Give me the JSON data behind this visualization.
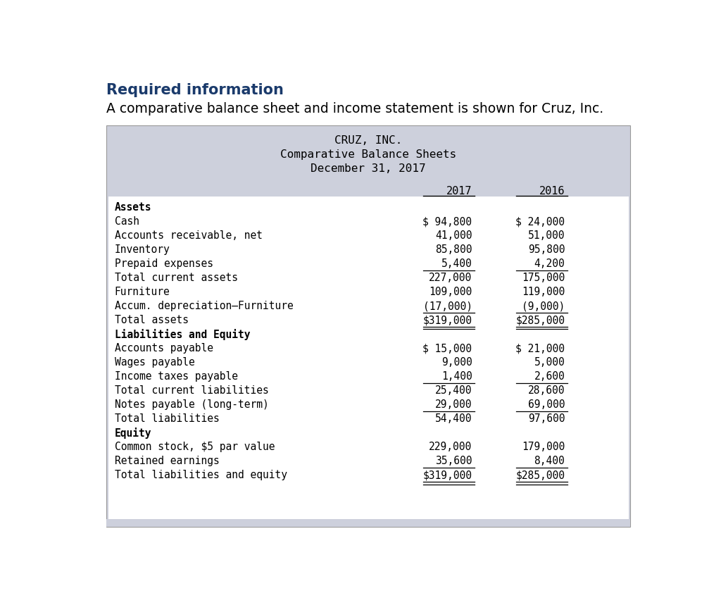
{
  "page_bg": "#ffffff",
  "header_title": "Required information",
  "header_title_color": "#1a3a6b",
  "header_subtitle": "A comparative balance sheet and income statement is shown for Cruz, Inc.",
  "table_bg": "#cdd0dc",
  "table_inner_bg": "#ffffff",
  "table_title_lines": [
    "CRUZ, INC.",
    "Comparative Balance Sheets",
    "December 31, 2017"
  ],
  "col_headers": [
    "2017",
    "2016"
  ],
  "rows": [
    {
      "label": "Assets",
      "val2017": "",
      "val2016": "",
      "bold": true,
      "underline_below": false,
      "dollar_sign": false
    },
    {
      "label": "Cash",
      "val2017": "$ 94,800",
      "val2016": "$ 24,000",
      "bold": false,
      "underline_below": false,
      "dollar_sign": false
    },
    {
      "label": "Accounts receivable, net",
      "val2017": "41,000",
      "val2016": "51,000",
      "bold": false,
      "underline_below": false,
      "dollar_sign": false
    },
    {
      "label": "Inventory",
      "val2017": "85,800",
      "val2016": "95,800",
      "bold": false,
      "underline_below": false,
      "dollar_sign": false
    },
    {
      "label": "Prepaid expenses",
      "val2017": "5,400",
      "val2016": "4,200",
      "bold": false,
      "underline_below": true,
      "dollar_sign": false
    },
    {
      "label": "Total current assets",
      "val2017": "227,000",
      "val2016": "175,000",
      "bold": false,
      "underline_below": false,
      "dollar_sign": false
    },
    {
      "label": "Furniture",
      "val2017": "109,000",
      "val2016": "119,000",
      "bold": false,
      "underline_below": false,
      "dollar_sign": false
    },
    {
      "label": "Accum. depreciation–Furniture",
      "val2017": "(17,000)",
      "val2016": "(9,000)",
      "bold": false,
      "underline_below": true,
      "dollar_sign": false
    },
    {
      "label": "Total assets",
      "val2017": "$319,000",
      "val2016": "$285,000",
      "bold": false,
      "underline_below": true,
      "dollar_sign": true
    },
    {
      "label": "Liabilities and Equity",
      "val2017": "",
      "val2016": "",
      "bold": true,
      "underline_below": false,
      "dollar_sign": false
    },
    {
      "label": "Accounts payable",
      "val2017": "$ 15,000",
      "val2016": "$ 21,000",
      "bold": false,
      "underline_below": false,
      "dollar_sign": false
    },
    {
      "label": "Wages payable",
      "val2017": "9,000",
      "val2016": "5,000",
      "bold": false,
      "underline_below": false,
      "dollar_sign": false
    },
    {
      "label": "Income taxes payable",
      "val2017": "1,400",
      "val2016": "2,600",
      "bold": false,
      "underline_below": true,
      "dollar_sign": false
    },
    {
      "label": "Total current liabilities",
      "val2017": "25,400",
      "val2016": "28,600",
      "bold": false,
      "underline_below": false,
      "dollar_sign": false
    },
    {
      "label": "Notes payable (long-term)",
      "val2017": "29,000",
      "val2016": "69,000",
      "bold": false,
      "underline_below": true,
      "dollar_sign": false
    },
    {
      "label": "Total liabilities",
      "val2017": "54,400",
      "val2016": "97,600",
      "bold": false,
      "underline_below": false,
      "dollar_sign": false
    },
    {
      "label": "Equity",
      "val2017": "",
      "val2016": "",
      "bold": true,
      "underline_below": false,
      "dollar_sign": false
    },
    {
      "label": "Common stock, $5 par value",
      "val2017": "229,000",
      "val2016": "179,000",
      "bold": false,
      "underline_below": false,
      "dollar_sign": false
    },
    {
      "label": "Retained earnings",
      "val2017": "35,600",
      "val2016": "8,400",
      "bold": false,
      "underline_below": true,
      "dollar_sign": false
    },
    {
      "label": "Total liabilities and equity",
      "val2017": "$319,000",
      "val2016": "$285,000",
      "bold": false,
      "underline_below": true,
      "dollar_sign": true
    }
  ],
  "font_size_header": 15,
  "font_size_subtitle": 13.5,
  "font_size_table_title": 11.5,
  "font_size_col_header": 11,
  "font_size_row": 10.5,
  "text_color": "#000000",
  "line_color": "#000000"
}
